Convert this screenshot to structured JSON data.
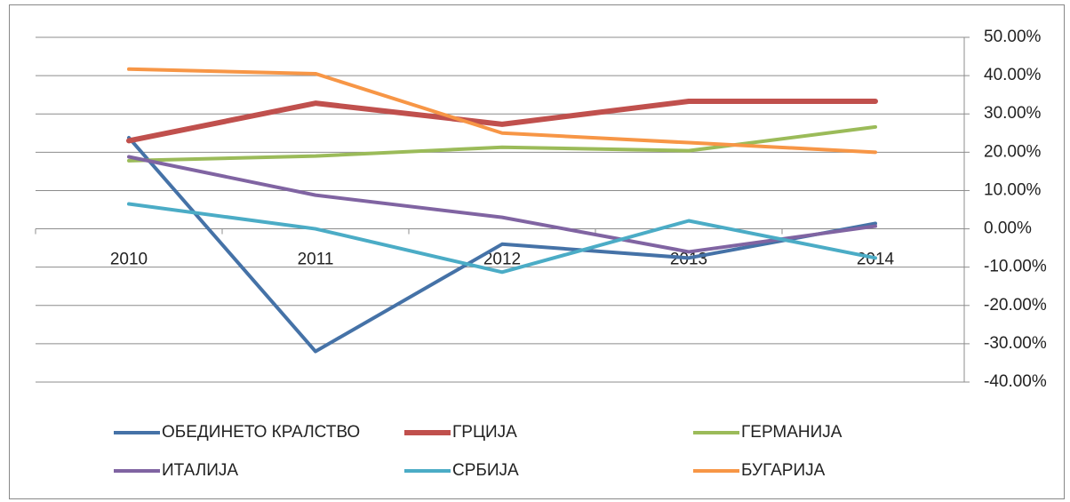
{
  "chart_data": {
    "type": "line",
    "categories": [
      "2010",
      "2011",
      "2012",
      "2013",
      "2014"
    ],
    "series": [
      {
        "name": "ОБЕДИНЕТО КРАЛСТВО",
        "color": "#4572a7",
        "values": [
          23.8,
          -32,
          -4,
          -7.6,
          1.4
        ]
      },
      {
        "name": "ГРЦИЈА",
        "color": "#c0504d",
        "values": [
          23,
          32.8,
          27.3,
          33.3,
          33.3
        ]
      },
      {
        "name": "ГЕРМАНИЈА",
        "color": "#9bbb59",
        "values": [
          17.8,
          19,
          21.3,
          20.4,
          26.6
        ]
      },
      {
        "name": "ИТАЛИЈА",
        "color": "#8064a2",
        "values": [
          18.8,
          8.8,
          3,
          -6,
          0.7
        ]
      },
      {
        "name": "СРБИЈА",
        "color": "#4bacc6",
        "values": [
          6.5,
          0,
          -11.3,
          2.1,
          -7.6
        ]
      },
      {
        "name": "БУГАРИЈА",
        "color": "#f79646",
        "values": [
          41.7,
          40.5,
          25,
          22.5,
          20
        ]
      }
    ],
    "ylim": [
      -40,
      50
    ],
    "yticks": [
      {
        "value": 50,
        "label": "50.00%"
      },
      {
        "value": 40,
        "label": "40.00%"
      },
      {
        "value": 30,
        "label": "30.00%"
      },
      {
        "value": 20,
        "label": "20.00%"
      },
      {
        "value": 10,
        "label": "10.00%"
      },
      {
        "value": 0,
        "label": "0.00%"
      },
      {
        "value": -10,
        "label": "-10.00%"
      },
      {
        "value": -20,
        "label": "-20.00%"
      },
      {
        "value": -30,
        "label": "-30.00%"
      },
      {
        "value": -40,
        "label": "-40.00%"
      }
    ],
    "grid": true,
    "y_axis_side": "right",
    "legend": "bottom"
  }
}
